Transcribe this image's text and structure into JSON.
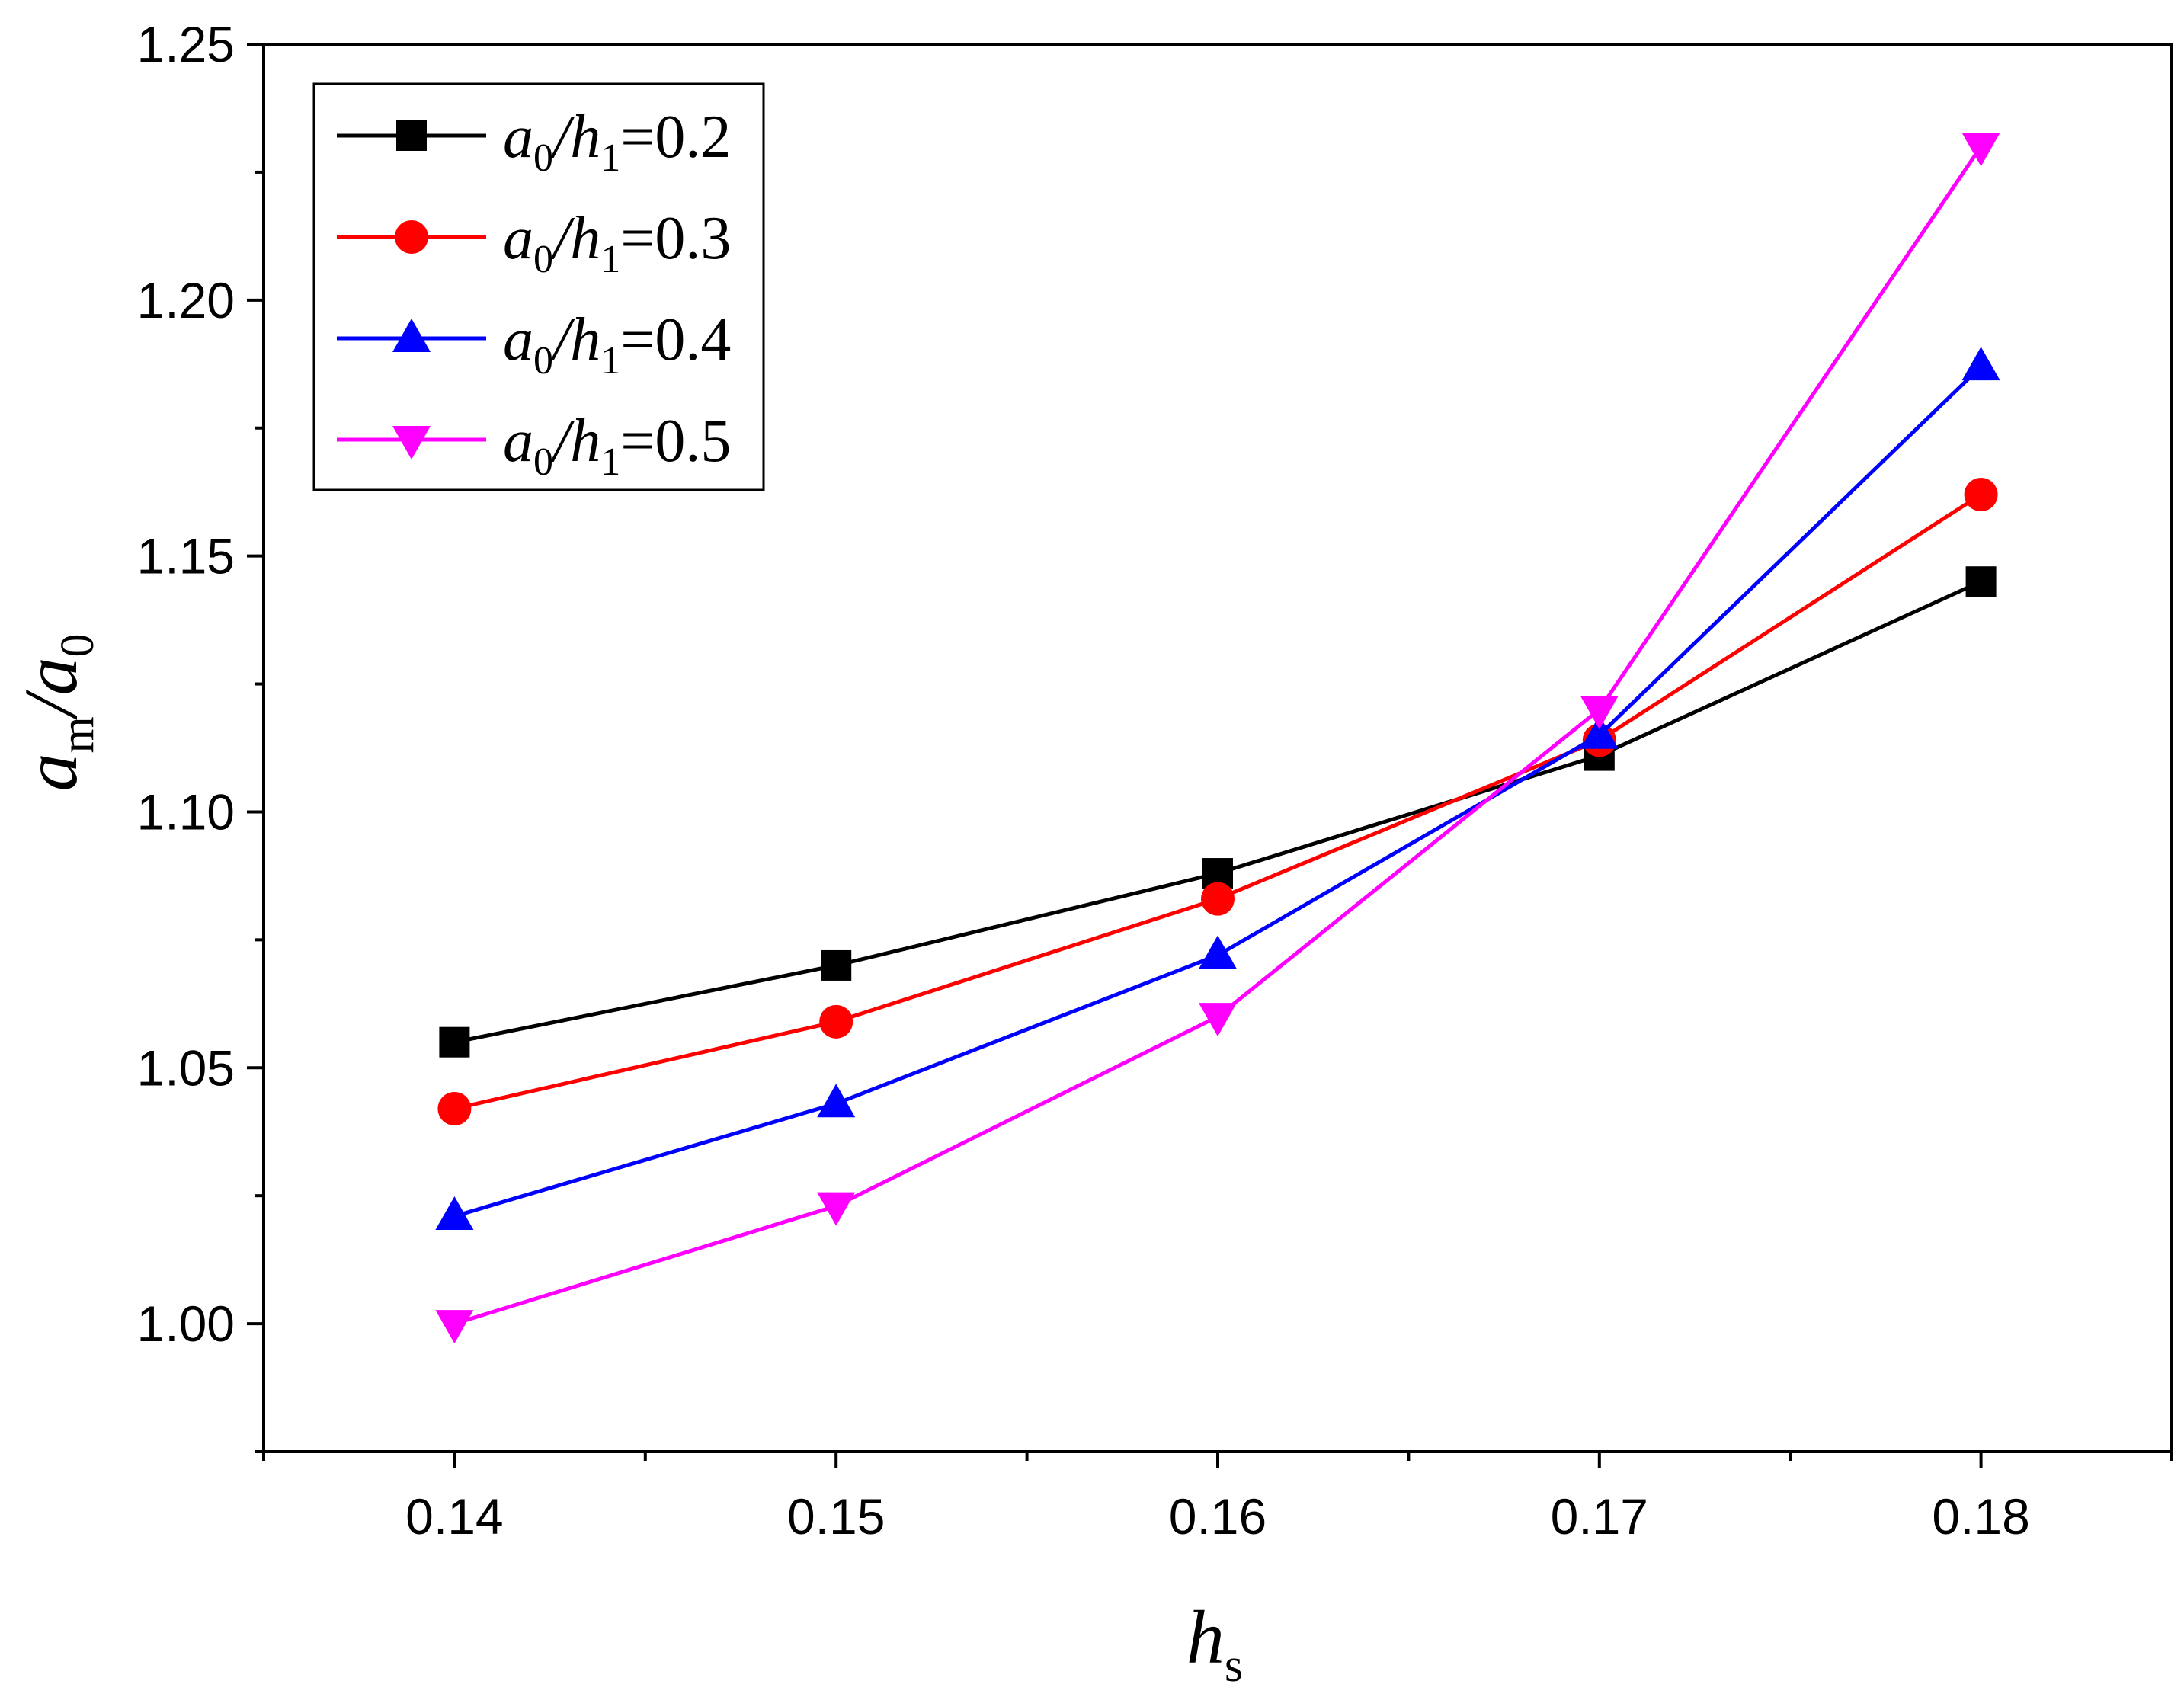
{
  "chart_data": {
    "type": "line",
    "title": "",
    "x": [
      0.14,
      0.15,
      0.16,
      0.17,
      0.18
    ],
    "xlim": [
      0.135,
      0.185
    ],
    "ylim": [
      0.975,
      1.25
    ],
    "x_ticks": [
      "0.14",
      "0.15",
      "0.16",
      "0.17",
      "0.18"
    ],
    "y_ticks": [
      "1.00",
      "1.05",
      "1.10",
      "1.15",
      "1.20",
      "1.25"
    ],
    "xlabel": {
      "main": "h",
      "sub": "s"
    },
    "ylabel": {
      "a": "a",
      "sub_m": "m",
      "slash": "/",
      "a0": "a",
      "sub_0": "0"
    },
    "grid": false,
    "legend_position": "top-left",
    "series": [
      {
        "name": "a0/h1=0.2",
        "parts": {
          "a": "a",
          "s0": "0",
          "slash": "/",
          "h": "h",
          "s1": "1",
          "value": "=0.2"
        },
        "color": "#000000",
        "marker": "square",
        "values": [
          1.055,
          1.07,
          1.088,
          1.111,
          1.145
        ]
      },
      {
        "name": "a0/h1=0.3",
        "parts": {
          "a": "a",
          "s0": "0",
          "slash": "/",
          "h": "h",
          "s1": "1",
          "value": "=0.3"
        },
        "color": "#ff0000",
        "marker": "circle",
        "values": [
          1.042,
          1.059,
          1.083,
          1.114,
          1.162
        ]
      },
      {
        "name": "a0/h1=0.4",
        "parts": {
          "a": "a",
          "s0": "0",
          "slash": "/",
          "h": "h",
          "s1": "1",
          "value": "=0.4"
        },
        "color": "#0000ff",
        "marker": "triangle-up",
        "values": [
          1.021,
          1.043,
          1.072,
          1.115,
          1.187
        ]
      },
      {
        "name": "a0/h1=0.5",
        "parts": {
          "a": "a",
          "s0": "0",
          "slash": "/",
          "h": "h",
          "s1": "1",
          "value": "=0.5"
        },
        "color": "#ff00ff",
        "marker": "triangle-down",
        "values": [
          1.0,
          1.023,
          1.06,
          1.12,
          1.23
        ]
      }
    ]
  }
}
